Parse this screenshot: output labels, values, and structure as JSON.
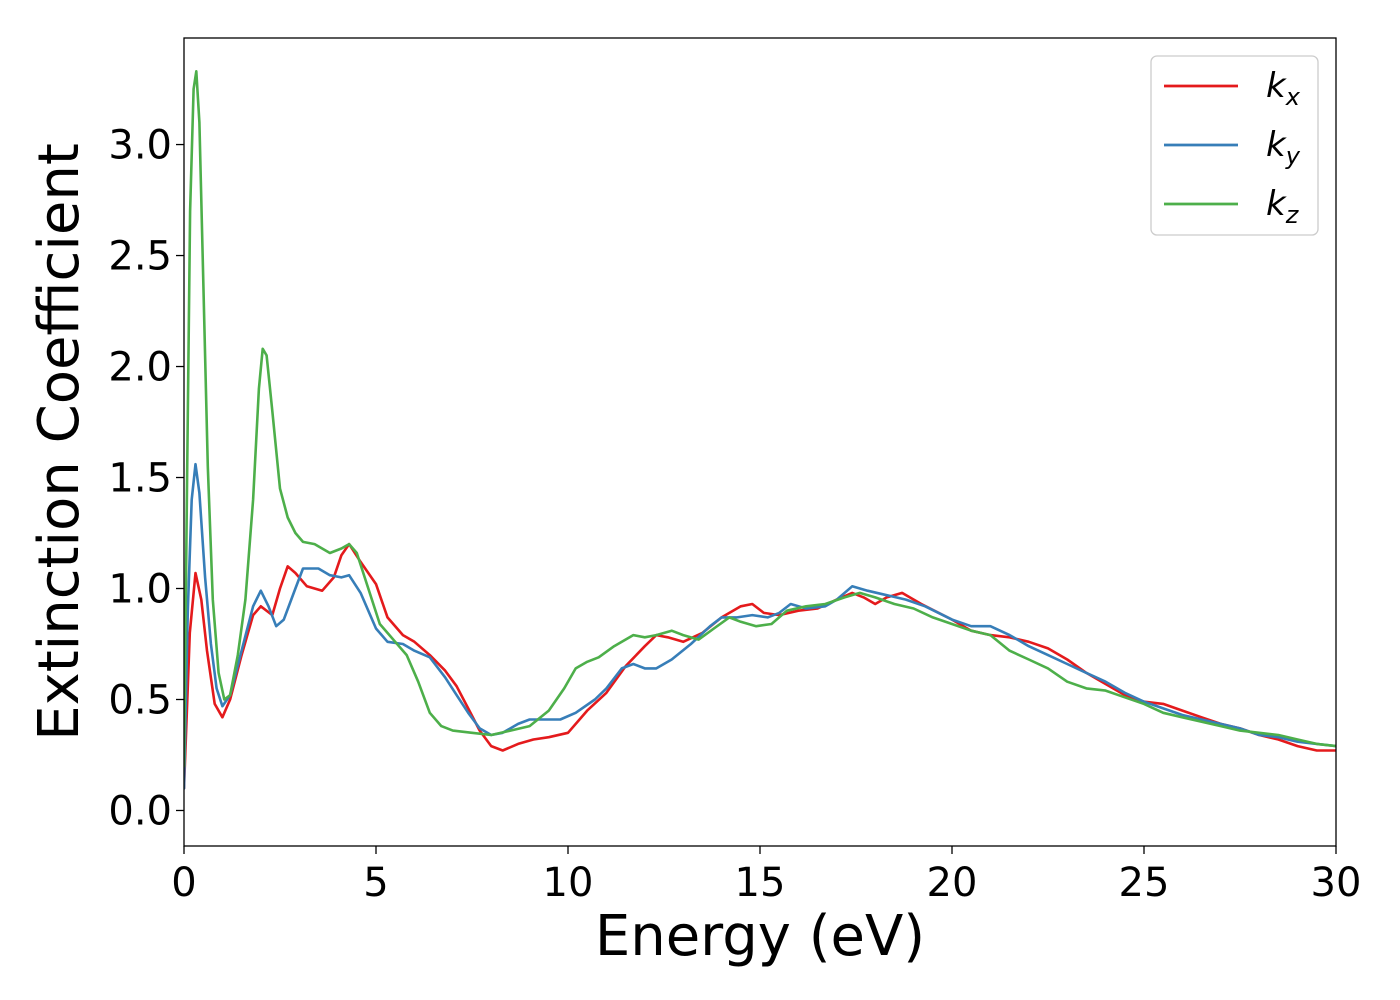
{
  "chart_data": {
    "type": "line",
    "title": "",
    "xlabel": "Energy (eV)",
    "ylabel": "Extinction Coefficient",
    "xlim": [
      0,
      30
    ],
    "ylim": [
      -0.16,
      3.48
    ],
    "xticks": [
      0,
      5,
      10,
      15,
      20,
      25,
      30
    ],
    "xtick_labels": [
      "0",
      "5",
      "10",
      "15",
      "20",
      "25",
      "30"
    ],
    "yticks": [
      0.0,
      0.5,
      1.0,
      1.5,
      2.0,
      2.5,
      3.0
    ],
    "ytick_labels": [
      "0.0",
      "0.5",
      "1.0",
      "1.5",
      "2.0",
      "2.5",
      "3.0"
    ],
    "grid": false,
    "legend_position": "top-right",
    "series": [
      {
        "name": "k",
        "subscript": "x",
        "color": "#e41a1c",
        "points": [
          [
            0,
            0.1
          ],
          [
            0.15,
            0.8
          ],
          [
            0.3,
            1.07
          ],
          [
            0.45,
            0.95
          ],
          [
            0.6,
            0.72
          ],
          [
            0.8,
            0.48
          ],
          [
            1.0,
            0.42
          ],
          [
            1.2,
            0.5
          ],
          [
            1.5,
            0.7
          ],
          [
            1.8,
            0.88
          ],
          [
            2.0,
            0.92
          ],
          [
            2.3,
            0.88
          ],
          [
            2.5,
            1.0
          ],
          [
            2.7,
            1.1
          ],
          [
            2.9,
            1.07
          ],
          [
            3.2,
            1.01
          ],
          [
            3.6,
            0.99
          ],
          [
            3.9,
            1.05
          ],
          [
            4.1,
            1.15
          ],
          [
            4.3,
            1.2
          ],
          [
            4.6,
            1.12
          ],
          [
            5.0,
            1.02
          ],
          [
            5.3,
            0.87
          ],
          [
            5.7,
            0.79
          ],
          [
            6.0,
            0.76
          ],
          [
            6.4,
            0.7
          ],
          [
            6.8,
            0.63
          ],
          [
            7.1,
            0.56
          ],
          [
            7.4,
            0.46
          ],
          [
            7.7,
            0.36
          ],
          [
            8.0,
            0.29
          ],
          [
            8.3,
            0.27
          ],
          [
            8.7,
            0.3
          ],
          [
            9.1,
            0.32
          ],
          [
            9.5,
            0.33
          ],
          [
            10.0,
            0.35
          ],
          [
            10.5,
            0.45
          ],
          [
            11.0,
            0.53
          ],
          [
            11.5,
            0.65
          ],
          [
            12.0,
            0.74
          ],
          [
            12.3,
            0.79
          ],
          [
            12.6,
            0.78
          ],
          [
            13.0,
            0.76
          ],
          [
            13.5,
            0.8
          ],
          [
            14.0,
            0.87
          ],
          [
            14.5,
            0.92
          ],
          [
            14.8,
            0.93
          ],
          [
            15.1,
            0.89
          ],
          [
            15.5,
            0.88
          ],
          [
            16.0,
            0.9
          ],
          [
            16.5,
            0.91
          ],
          [
            17.0,
            0.95
          ],
          [
            17.4,
            0.98
          ],
          [
            17.7,
            0.96
          ],
          [
            18.0,
            0.93
          ],
          [
            18.3,
            0.96
          ],
          [
            18.7,
            0.98
          ],
          [
            19.2,
            0.93
          ],
          [
            20.0,
            0.86
          ],
          [
            20.5,
            0.81
          ],
          [
            21.0,
            0.79
          ],
          [
            21.5,
            0.78
          ],
          [
            22.0,
            0.76
          ],
          [
            22.5,
            0.73
          ],
          [
            23.0,
            0.68
          ],
          [
            23.5,
            0.62
          ],
          [
            24.0,
            0.57
          ],
          [
            24.5,
            0.52
          ],
          [
            25.0,
            0.49
          ],
          [
            25.5,
            0.48
          ],
          [
            26.0,
            0.45
          ],
          [
            26.5,
            0.42
          ],
          [
            27.0,
            0.39
          ],
          [
            27.5,
            0.37
          ],
          [
            28.0,
            0.34
          ],
          [
            28.5,
            0.32
          ],
          [
            29.0,
            0.29
          ],
          [
            29.5,
            0.27
          ],
          [
            30.0,
            0.27
          ]
        ]
      },
      {
        "name": "k",
        "subscript": "y",
        "color": "#377eb8",
        "points": [
          [
            0,
            0.1
          ],
          [
            0.1,
            0.9
          ],
          [
            0.2,
            1.4
          ],
          [
            0.3,
            1.56
          ],
          [
            0.4,
            1.43
          ],
          [
            0.55,
            1.05
          ],
          [
            0.7,
            0.75
          ],
          [
            0.85,
            0.55
          ],
          [
            1.0,
            0.47
          ],
          [
            1.2,
            0.52
          ],
          [
            1.5,
            0.72
          ],
          [
            1.8,
            0.92
          ],
          [
            2.0,
            0.99
          ],
          [
            2.2,
            0.92
          ],
          [
            2.4,
            0.83
          ],
          [
            2.6,
            0.86
          ],
          [
            2.9,
            1.0
          ],
          [
            3.1,
            1.09
          ],
          [
            3.5,
            1.09
          ],
          [
            3.8,
            1.06
          ],
          [
            4.1,
            1.05
          ],
          [
            4.3,
            1.06
          ],
          [
            4.6,
            0.98
          ],
          [
            5.0,
            0.82
          ],
          [
            5.3,
            0.76
          ],
          [
            5.7,
            0.75
          ],
          [
            6.0,
            0.72
          ],
          [
            6.4,
            0.69
          ],
          [
            6.8,
            0.6
          ],
          [
            7.1,
            0.52
          ],
          [
            7.4,
            0.44
          ],
          [
            7.7,
            0.37
          ],
          [
            8.0,
            0.34
          ],
          [
            8.3,
            0.35
          ],
          [
            8.7,
            0.39
          ],
          [
            9.0,
            0.41
          ],
          [
            9.5,
            0.41
          ],
          [
            9.8,
            0.41
          ],
          [
            10.2,
            0.44
          ],
          [
            10.7,
            0.5
          ],
          [
            11.0,
            0.55
          ],
          [
            11.4,
            0.64
          ],
          [
            11.7,
            0.66
          ],
          [
            12.0,
            0.64
          ],
          [
            12.3,
            0.64
          ],
          [
            12.7,
            0.68
          ],
          [
            13.2,
            0.75
          ],
          [
            13.7,
            0.83
          ],
          [
            14.0,
            0.87
          ],
          [
            14.4,
            0.87
          ],
          [
            14.8,
            0.88
          ],
          [
            15.2,
            0.87
          ],
          [
            15.5,
            0.89
          ],
          [
            15.8,
            0.93
          ],
          [
            16.2,
            0.91
          ],
          [
            16.7,
            0.92
          ],
          [
            17.0,
            0.95
          ],
          [
            17.4,
            1.01
          ],
          [
            17.8,
            0.99
          ],
          [
            18.3,
            0.97
          ],
          [
            18.8,
            0.95
          ],
          [
            19.3,
            0.92
          ],
          [
            20.0,
            0.86
          ],
          [
            20.5,
            0.83
          ],
          [
            21.0,
            0.83
          ],
          [
            21.5,
            0.79
          ],
          [
            22.0,
            0.74
          ],
          [
            22.5,
            0.7
          ],
          [
            23.0,
            0.66
          ],
          [
            23.5,
            0.62
          ],
          [
            24.0,
            0.58
          ],
          [
            24.5,
            0.53
          ],
          [
            25.0,
            0.49
          ],
          [
            25.5,
            0.46
          ],
          [
            26.0,
            0.43
          ],
          [
            26.5,
            0.41
          ],
          [
            27.0,
            0.39
          ],
          [
            27.5,
            0.37
          ],
          [
            28.0,
            0.34
          ],
          [
            28.5,
            0.33
          ],
          [
            29.0,
            0.31
          ],
          [
            29.5,
            0.3
          ],
          [
            30.0,
            0.29
          ]
        ]
      },
      {
        "name": "k",
        "subscript": "z",
        "color": "#4daf4a",
        "points": [
          [
            0,
            0.2
          ],
          [
            0.08,
            1.5
          ],
          [
            0.16,
            2.7
          ],
          [
            0.25,
            3.25
          ],
          [
            0.32,
            3.33
          ],
          [
            0.4,
            3.1
          ],
          [
            0.5,
            2.4
          ],
          [
            0.62,
            1.55
          ],
          [
            0.75,
            0.95
          ],
          [
            0.9,
            0.62
          ],
          [
            1.05,
            0.5
          ],
          [
            1.2,
            0.52
          ],
          [
            1.4,
            0.7
          ],
          [
            1.6,
            0.95
          ],
          [
            1.8,
            1.4
          ],
          [
            1.95,
            1.9
          ],
          [
            2.05,
            2.08
          ],
          [
            2.15,
            2.05
          ],
          [
            2.3,
            1.8
          ],
          [
            2.5,
            1.45
          ],
          [
            2.7,
            1.32
          ],
          [
            2.9,
            1.25
          ],
          [
            3.1,
            1.21
          ],
          [
            3.4,
            1.2
          ],
          [
            3.8,
            1.16
          ],
          [
            4.1,
            1.18
          ],
          [
            4.3,
            1.2
          ],
          [
            4.5,
            1.16
          ],
          [
            4.8,
            1.0
          ],
          [
            5.1,
            0.84
          ],
          [
            5.5,
            0.76
          ],
          [
            5.8,
            0.7
          ],
          [
            6.1,
            0.58
          ],
          [
            6.4,
            0.44
          ],
          [
            6.7,
            0.38
          ],
          [
            7.0,
            0.36
          ],
          [
            7.5,
            0.35
          ],
          [
            8.0,
            0.34
          ],
          [
            8.5,
            0.36
          ],
          [
            9.0,
            0.38
          ],
          [
            9.5,
            0.45
          ],
          [
            9.9,
            0.55
          ],
          [
            10.2,
            0.64
          ],
          [
            10.5,
            0.67
          ],
          [
            10.8,
            0.69
          ],
          [
            11.2,
            0.74
          ],
          [
            11.7,
            0.79
          ],
          [
            12.0,
            0.78
          ],
          [
            12.3,
            0.79
          ],
          [
            12.7,
            0.81
          ],
          [
            13.0,
            0.79
          ],
          [
            13.4,
            0.77
          ],
          [
            13.8,
            0.82
          ],
          [
            14.2,
            0.87
          ],
          [
            14.5,
            0.85
          ],
          [
            14.9,
            0.83
          ],
          [
            15.3,
            0.84
          ],
          [
            15.7,
            0.9
          ],
          [
            16.2,
            0.92
          ],
          [
            16.7,
            0.93
          ],
          [
            17.2,
            0.96
          ],
          [
            17.6,
            0.98
          ],
          [
            18.0,
            0.96
          ],
          [
            18.5,
            0.93
          ],
          [
            19.0,
            0.91
          ],
          [
            19.5,
            0.87
          ],
          [
            20.0,
            0.84
          ],
          [
            20.5,
            0.81
          ],
          [
            21.0,
            0.79
          ],
          [
            21.5,
            0.72
          ],
          [
            22.0,
            0.68
          ],
          [
            22.5,
            0.64
          ],
          [
            23.0,
            0.58
          ],
          [
            23.5,
            0.55
          ],
          [
            24.0,
            0.54
          ],
          [
            24.5,
            0.51
          ],
          [
            25.0,
            0.48
          ],
          [
            25.5,
            0.44
          ],
          [
            26.0,
            0.42
          ],
          [
            26.5,
            0.4
          ],
          [
            27.0,
            0.38
          ],
          [
            27.5,
            0.36
          ],
          [
            28.0,
            0.35
          ],
          [
            28.5,
            0.34
          ],
          [
            29.0,
            0.32
          ],
          [
            29.5,
            0.3
          ],
          [
            30.0,
            0.29
          ]
        ]
      }
    ]
  }
}
